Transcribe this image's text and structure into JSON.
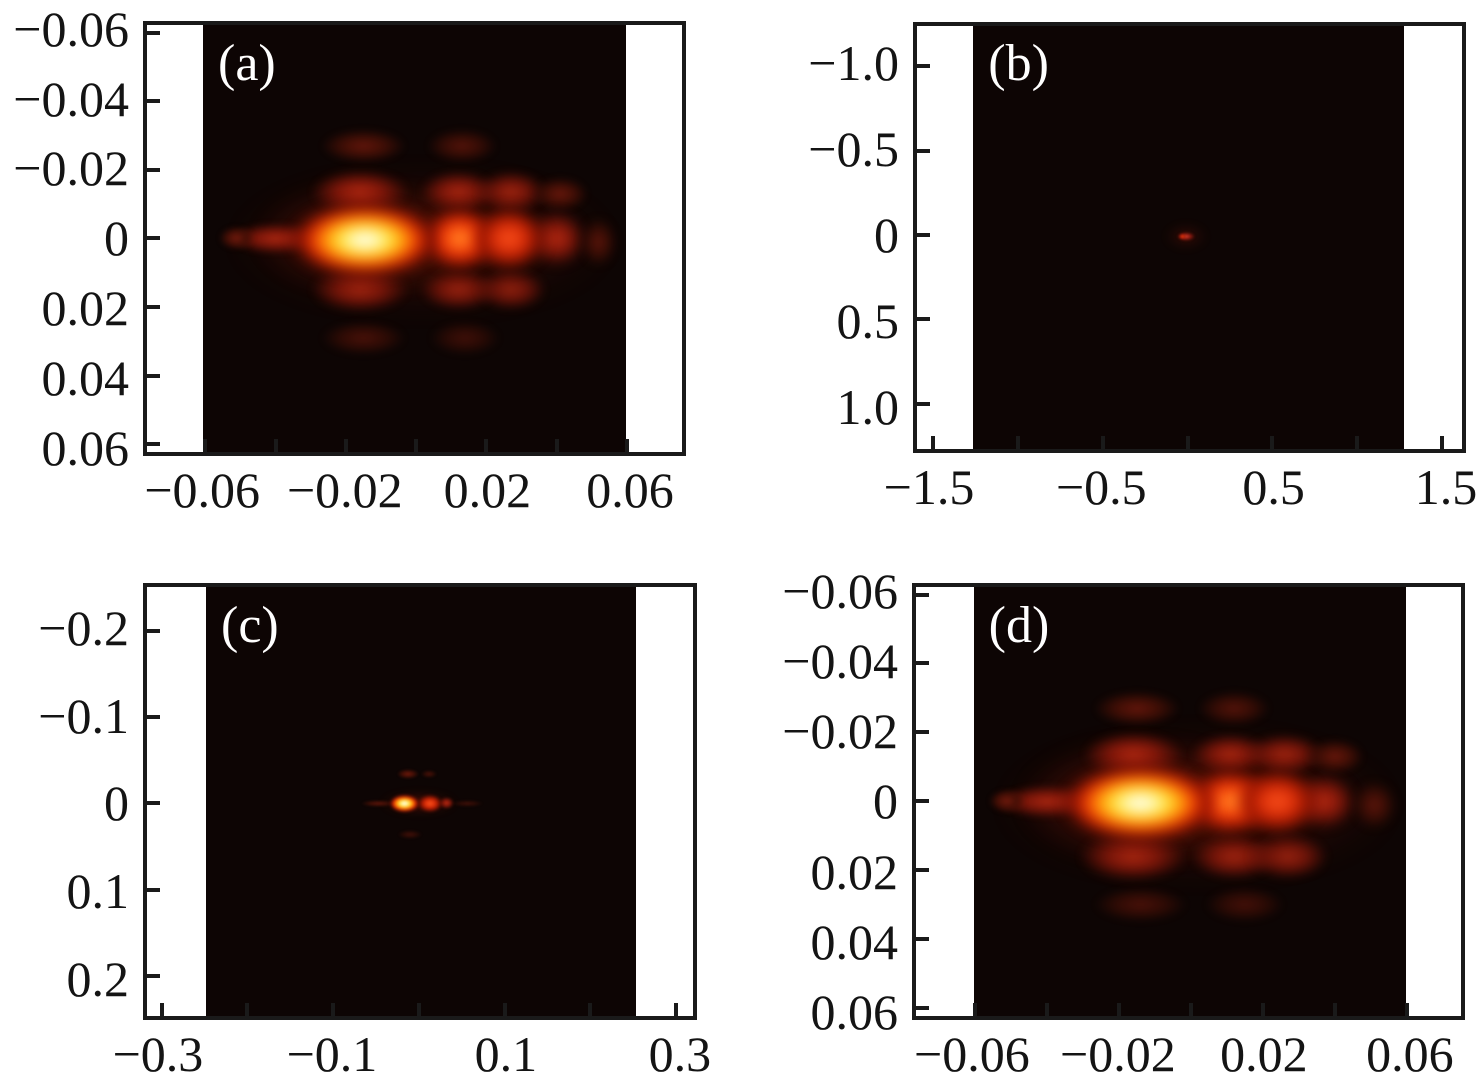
{
  "figure": {
    "background": "#ffffff",
    "frame_color": "#1a1a1a",
    "heatmap_background": "#0d0504",
    "colormap": "hot (black - red - orange - yellow - white)",
    "panel_letters": [
      "(a)",
      "(b)",
      "(c)",
      "(d)"
    ]
  },
  "chart_data": [
    {
      "key": "a",
      "type": "heatmap",
      "panel_label": "(a)",
      "xlim": [
        -0.0766,
        0.0757
      ],
      "ylim": [
        -0.0622,
        0.0623
      ],
      "image_x": [
        -0.0606,
        0.0598
      ],
      "image_y": [
        -0.0622,
        0.0623
      ],
      "x_ticks": {
        "values": [
          -0.06,
          -0.04,
          -0.02,
          0,
          0.02,
          0.04,
          0.06
        ],
        "labels": [
          "−0.06",
          null,
          "−0.02",
          null,
          "0.02",
          null,
          "0.06"
        ]
      },
      "y_ticks": {
        "values": [
          -0.06,
          -0.04,
          -0.02,
          0,
          0.02,
          0.04,
          0.06
        ],
        "labels": [
          "−0.06",
          "−0.04",
          "−0.02",
          "0",
          "0.02",
          "0.04",
          "0.06"
        ]
      },
      "peaks": [
        {
          "x": 0.002,
          "y": 0.001,
          "rx": 0.055,
          "ry": 0.022,
          "c": "glow",
          "a": 0.55,
          "i": 0.05
        },
        {
          "x": -0.014,
          "y": 0.0,
          "rx": 0.032,
          "ry": 0.016,
          "c": "glow",
          "a": 0.95,
          "i": 0.1
        },
        {
          "x": -0.015,
          "y": -0.027,
          "rx": 0.012,
          "ry": 0.005,
          "c": "faint",
          "a": 0.85,
          "i": 0.1
        },
        {
          "x": 0.013,
          "y": -0.027,
          "rx": 0.01,
          "ry": 0.005,
          "c": "faint",
          "a": 0.7,
          "i": 0.08
        },
        {
          "x": -0.015,
          "y": 0.029,
          "rx": 0.012,
          "ry": 0.005,
          "c": "faint",
          "a": 0.6,
          "i": 0.06
        },
        {
          "x": 0.014,
          "y": 0.029,
          "rx": 0.01,
          "ry": 0.005,
          "c": "faint",
          "a": 0.5,
          "i": 0.05
        },
        {
          "x": -0.016,
          "y": -0.0135,
          "rx": 0.014,
          "ry": 0.0065,
          "c": "dim",
          "a": 0.95,
          "i": 0.25
        },
        {
          "x": 0.012,
          "y": -0.0135,
          "rx": 0.011,
          "ry": 0.006,
          "c": "dim",
          "a": 0.9,
          "i": 0.22
        },
        {
          "x": 0.027,
          "y": -0.0135,
          "rx": 0.01,
          "ry": 0.006,
          "c": "dim",
          "a": 0.85,
          "i": 0.2
        },
        {
          "x": 0.041,
          "y": -0.013,
          "rx": 0.008,
          "ry": 0.005,
          "c": "faint",
          "a": 0.9,
          "i": 0.1
        },
        {
          "x": -0.016,
          "y": 0.015,
          "rx": 0.014,
          "ry": 0.0065,
          "c": "dim",
          "a": 0.85,
          "i": 0.2
        },
        {
          "x": 0.012,
          "y": 0.015,
          "rx": 0.011,
          "ry": 0.006,
          "c": "dim",
          "a": 0.8,
          "i": 0.18
        },
        {
          "x": 0.027,
          "y": 0.015,
          "rx": 0.01,
          "ry": 0.006,
          "c": "dim",
          "a": 0.75,
          "i": 0.16
        },
        {
          "x": -0.04,
          "y": 0.0,
          "rx": 0.013,
          "ry": 0.0045,
          "c": "dim",
          "a": 0.9,
          "i": 0.2
        },
        {
          "x": -0.051,
          "y": 0.0,
          "rx": 0.005,
          "ry": 0.0035,
          "c": "faint",
          "a": 1,
          "i": 0.1
        },
        {
          "x": 0.04,
          "y": 0.0,
          "rx": 0.0085,
          "ry": 0.008,
          "c": "dim",
          "a": 1,
          "i": 0.25
        },
        {
          "x": 0.052,
          "y": 0.001,
          "rx": 0.005,
          "ry": 0.007,
          "c": "faint",
          "a": 0.8,
          "i": 0.1
        },
        {
          "x": 0.0125,
          "y": 0.0,
          "rx": 0.0105,
          "ry": 0.0092,
          "c": "hot",
          "a": 1,
          "i": 0.55
        },
        {
          "x": 0.0265,
          "y": 0.0,
          "rx": 0.0105,
          "ry": 0.0092,
          "c": "red",
          "a": 1,
          "i": 0.5
        },
        {
          "x": -0.0145,
          "y": 0.0005,
          "rx": 0.0205,
          "ry": 0.0105,
          "c": "core",
          "a": 1,
          "i": 1.0
        }
      ]
    },
    {
      "key": "b",
      "type": "heatmap",
      "panel_label": "(b)",
      "xlim": [
        -1.593,
        1.616
      ],
      "ylim": [
        -1.238,
        1.268
      ],
      "image_x": [
        -1.262,
        1.273
      ],
      "image_y": [
        -1.238,
        1.268
      ],
      "x_ticks": {
        "values": [
          -1.5,
          -1.0,
          -0.5,
          0,
          0.5,
          1.0,
          1.5
        ],
        "labels": [
          "−1.5",
          null,
          "−0.5",
          null,
          "0.5",
          null,
          "1.5"
        ]
      },
      "y_ticks": {
        "values": [
          -1.0,
          -0.5,
          0,
          0.5,
          1.0
        ],
        "labels": [
          "−1.0",
          "−0.5",
          "0",
          "0.5",
          "1.0"
        ]
      },
      "peaks": [
        {
          "x": -0.01,
          "y": 0.01,
          "rx": 0.13,
          "ry": 0.08,
          "c": "glow",
          "a": 0.45,
          "i": 0.03
        },
        {
          "x": -0.01,
          "y": 0.01,
          "rx": 0.055,
          "ry": 0.028,
          "c": "dot",
          "a": 1,
          "i": 0.5
        },
        {
          "x": -0.03,
          "y": 0.008,
          "rx": 0.022,
          "ry": 0.015,
          "c": "red",
          "a": 0.85,
          "i": 0.6
        }
      ]
    },
    {
      "key": "c",
      "type": "heatmap",
      "panel_label": "(c)",
      "xlim": [
        -0.3172,
        0.3197
      ],
      "ylim": [
        -0.2513,
        0.2468
      ],
      "image_x": [
        -0.2484,
        0.2528
      ],
      "image_y": [
        -0.2513,
        0.2468
      ],
      "x_ticks": {
        "values": [
          -0.3,
          -0.2,
          -0.1,
          0,
          0.1,
          0.2,
          0.3
        ],
        "labels": [
          "−0.3",
          null,
          "−0.1",
          null,
          "0.1",
          null,
          "0.3"
        ]
      },
      "y_ticks": {
        "values": [
          -0.2,
          -0.1,
          0,
          0.1,
          0.2
        ],
        "labels": [
          "−0.2",
          "−0.1",
          "0",
          "0.1",
          "0.2"
        ]
      },
      "peaks": [
        {
          "x": 0.0,
          "y": 0.0,
          "rx": 0.045,
          "ry": 0.014,
          "c": "glow",
          "a": 0.7,
          "i": 0.06
        },
        {
          "x": -0.047,
          "y": 0.0,
          "rx": 0.02,
          "ry": 0.004,
          "c": "faint",
          "a": 0.8,
          "i": 0.08
        },
        {
          "x": 0.057,
          "y": 0.0,
          "rx": 0.018,
          "ry": 0.004,
          "c": "faint",
          "a": 0.5,
          "i": 0.05
        },
        {
          "x": -0.013,
          "y": -0.034,
          "rx": 0.013,
          "ry": 0.006,
          "c": "faint",
          "a": 0.95,
          "i": 0.12
        },
        {
          "x": 0.012,
          "y": -0.034,
          "rx": 0.009,
          "ry": 0.005,
          "c": "faint",
          "a": 0.6,
          "i": 0.07
        },
        {
          "x": -0.01,
          "y": 0.036,
          "rx": 0.014,
          "ry": 0.005,
          "c": "faint",
          "a": 0.5,
          "i": 0.05
        },
        {
          "x": 0.032,
          "y": 0.0,
          "rx": 0.009,
          "ry": 0.007,
          "c": "dim",
          "a": 1,
          "i": 0.25
        },
        {
          "x": 0.013,
          "y": 0.0,
          "rx": 0.014,
          "ry": 0.0095,
          "c": "red",
          "a": 1,
          "i": 0.5
        },
        {
          "x": -0.017,
          "y": 0.0,
          "rx": 0.017,
          "ry": 0.0095,
          "c": "core",
          "a": 1,
          "i": 1.0
        }
      ]
    },
    {
      "key": "d",
      "type": "heatmap",
      "panel_label": "(d)",
      "xlim": [
        -0.0764,
        0.0751
      ],
      "ylim": [
        -0.0622,
        0.0623
      ],
      "image_x": [
        -0.0604,
        0.0597
      ],
      "image_y": [
        -0.0622,
        0.0623
      ],
      "x_ticks": {
        "values": [
          -0.06,
          -0.04,
          -0.02,
          0,
          0.02,
          0.04,
          0.06
        ],
        "labels": [
          "−0.06",
          null,
          "−0.02",
          null,
          "0.02",
          null,
          "0.06"
        ]
      },
      "y_ticks": {
        "values": [
          -0.06,
          -0.04,
          -0.02,
          0,
          0.02,
          0.04,
          0.06
        ],
        "labels": [
          "−0.06",
          "−0.04",
          "−0.02",
          "0",
          "0.02",
          "0.04",
          "0.06"
        ]
      },
      "peaks": [
        {
          "x": 0.002,
          "y": 0.001,
          "rx": 0.056,
          "ry": 0.023,
          "c": "glow",
          "a": 0.6,
          "i": 0.05
        },
        {
          "x": -0.013,
          "y": 0.0,
          "rx": 0.034,
          "ry": 0.017,
          "c": "glow",
          "a": 1,
          "i": 0.1
        },
        {
          "x": -0.015,
          "y": -0.027,
          "rx": 0.012,
          "ry": 0.005,
          "c": "faint",
          "a": 0.85,
          "i": 0.1
        },
        {
          "x": 0.012,
          "y": -0.027,
          "rx": 0.01,
          "ry": 0.005,
          "c": "faint",
          "a": 0.7,
          "i": 0.08
        },
        {
          "x": -0.014,
          "y": 0.03,
          "rx": 0.013,
          "ry": 0.005,
          "c": "faint",
          "a": 0.6,
          "i": 0.06
        },
        {
          "x": 0.015,
          "y": 0.03,
          "rx": 0.011,
          "ry": 0.005,
          "c": "faint",
          "a": 0.55,
          "i": 0.05
        },
        {
          "x": -0.016,
          "y": -0.0135,
          "rx": 0.014,
          "ry": 0.0065,
          "c": "dim",
          "a": 0.95,
          "i": 0.25
        },
        {
          "x": 0.011,
          "y": -0.0135,
          "rx": 0.011,
          "ry": 0.006,
          "c": "dim",
          "a": 0.9,
          "i": 0.22
        },
        {
          "x": 0.026,
          "y": -0.0135,
          "rx": 0.011,
          "ry": 0.006,
          "c": "dim",
          "a": 0.85,
          "i": 0.2
        },
        {
          "x": 0.04,
          "y": -0.013,
          "rx": 0.008,
          "ry": 0.005,
          "c": "faint",
          "a": 0.9,
          "i": 0.1
        },
        {
          "x": -0.016,
          "y": 0.016,
          "rx": 0.015,
          "ry": 0.007,
          "c": "dim",
          "a": 0.9,
          "i": 0.2
        },
        {
          "x": 0.012,
          "y": 0.016,
          "rx": 0.012,
          "ry": 0.0065,
          "c": "dim",
          "a": 0.85,
          "i": 0.18
        },
        {
          "x": 0.027,
          "y": 0.016,
          "rx": 0.011,
          "ry": 0.0065,
          "c": "dim",
          "a": 0.8,
          "i": 0.16
        },
        {
          "x": -0.04,
          "y": 0.0,
          "rx": 0.014,
          "ry": 0.0048,
          "c": "dim",
          "a": 0.9,
          "i": 0.2
        },
        {
          "x": -0.051,
          "y": 0.0,
          "rx": 0.005,
          "ry": 0.0035,
          "c": "faint",
          "a": 1,
          "i": 0.1
        },
        {
          "x": 0.037,
          "y": 0.0,
          "rx": 0.009,
          "ry": 0.008,
          "c": "dim",
          "a": 1,
          "i": 0.25
        },
        {
          "x": 0.051,
          "y": 0.001,
          "rx": 0.006,
          "ry": 0.007,
          "c": "faint",
          "a": 0.8,
          "i": 0.1
        },
        {
          "x": 0.011,
          "y": 0.0,
          "rx": 0.0115,
          "ry": 0.0095,
          "c": "hot",
          "a": 1,
          "i": 0.55
        },
        {
          "x": 0.024,
          "y": 0.0,
          "rx": 0.0115,
          "ry": 0.0095,
          "c": "red",
          "a": 1,
          "i": 0.5
        },
        {
          "x": -0.014,
          "y": 0.0005,
          "rx": 0.021,
          "ry": 0.0108,
          "c": "core",
          "a": 1,
          "i": 1.0
        }
      ]
    }
  ]
}
